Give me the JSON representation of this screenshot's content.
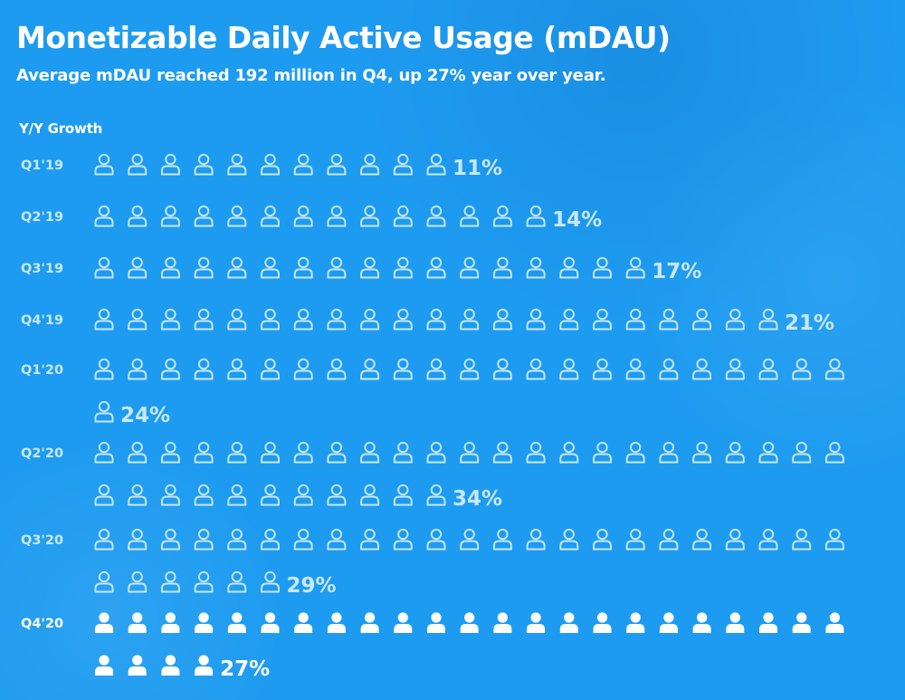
{
  "title": "Monetizable Daily Active Usage (mDAU)",
  "subtitle": "Average mDAU reached 192 million in Q4, up 27% year over year.",
  "section_label": "Y/Y Growth",
  "colors": {
    "background": "#1d9bf0",
    "past_quarter": "#c9e8fb",
    "current_quarter": "#ffffff"
  },
  "icon": "person-icon",
  "chart_data": {
    "type": "pictograph",
    "title": "Monetizable Daily Active Usage (mDAU)",
    "subtitle": "Average mDAU reached 192 million in Q4, up 27% year over year.",
    "ylabel": "Y/Y Growth",
    "unit": "%",
    "categories": [
      "Q1'19",
      "Q2'19",
      "Q3'19",
      "Q4'19",
      "Q1'20",
      "Q2'20",
      "Q3'20",
      "Q4'20"
    ],
    "values": [
      11,
      14,
      17,
      21,
      24,
      34,
      29,
      27
    ],
    "labels": [
      "11%",
      "14%",
      "17%",
      "21%",
      "24%",
      "34%",
      "29%",
      "27%"
    ],
    "highlighted": "Q4'20"
  }
}
